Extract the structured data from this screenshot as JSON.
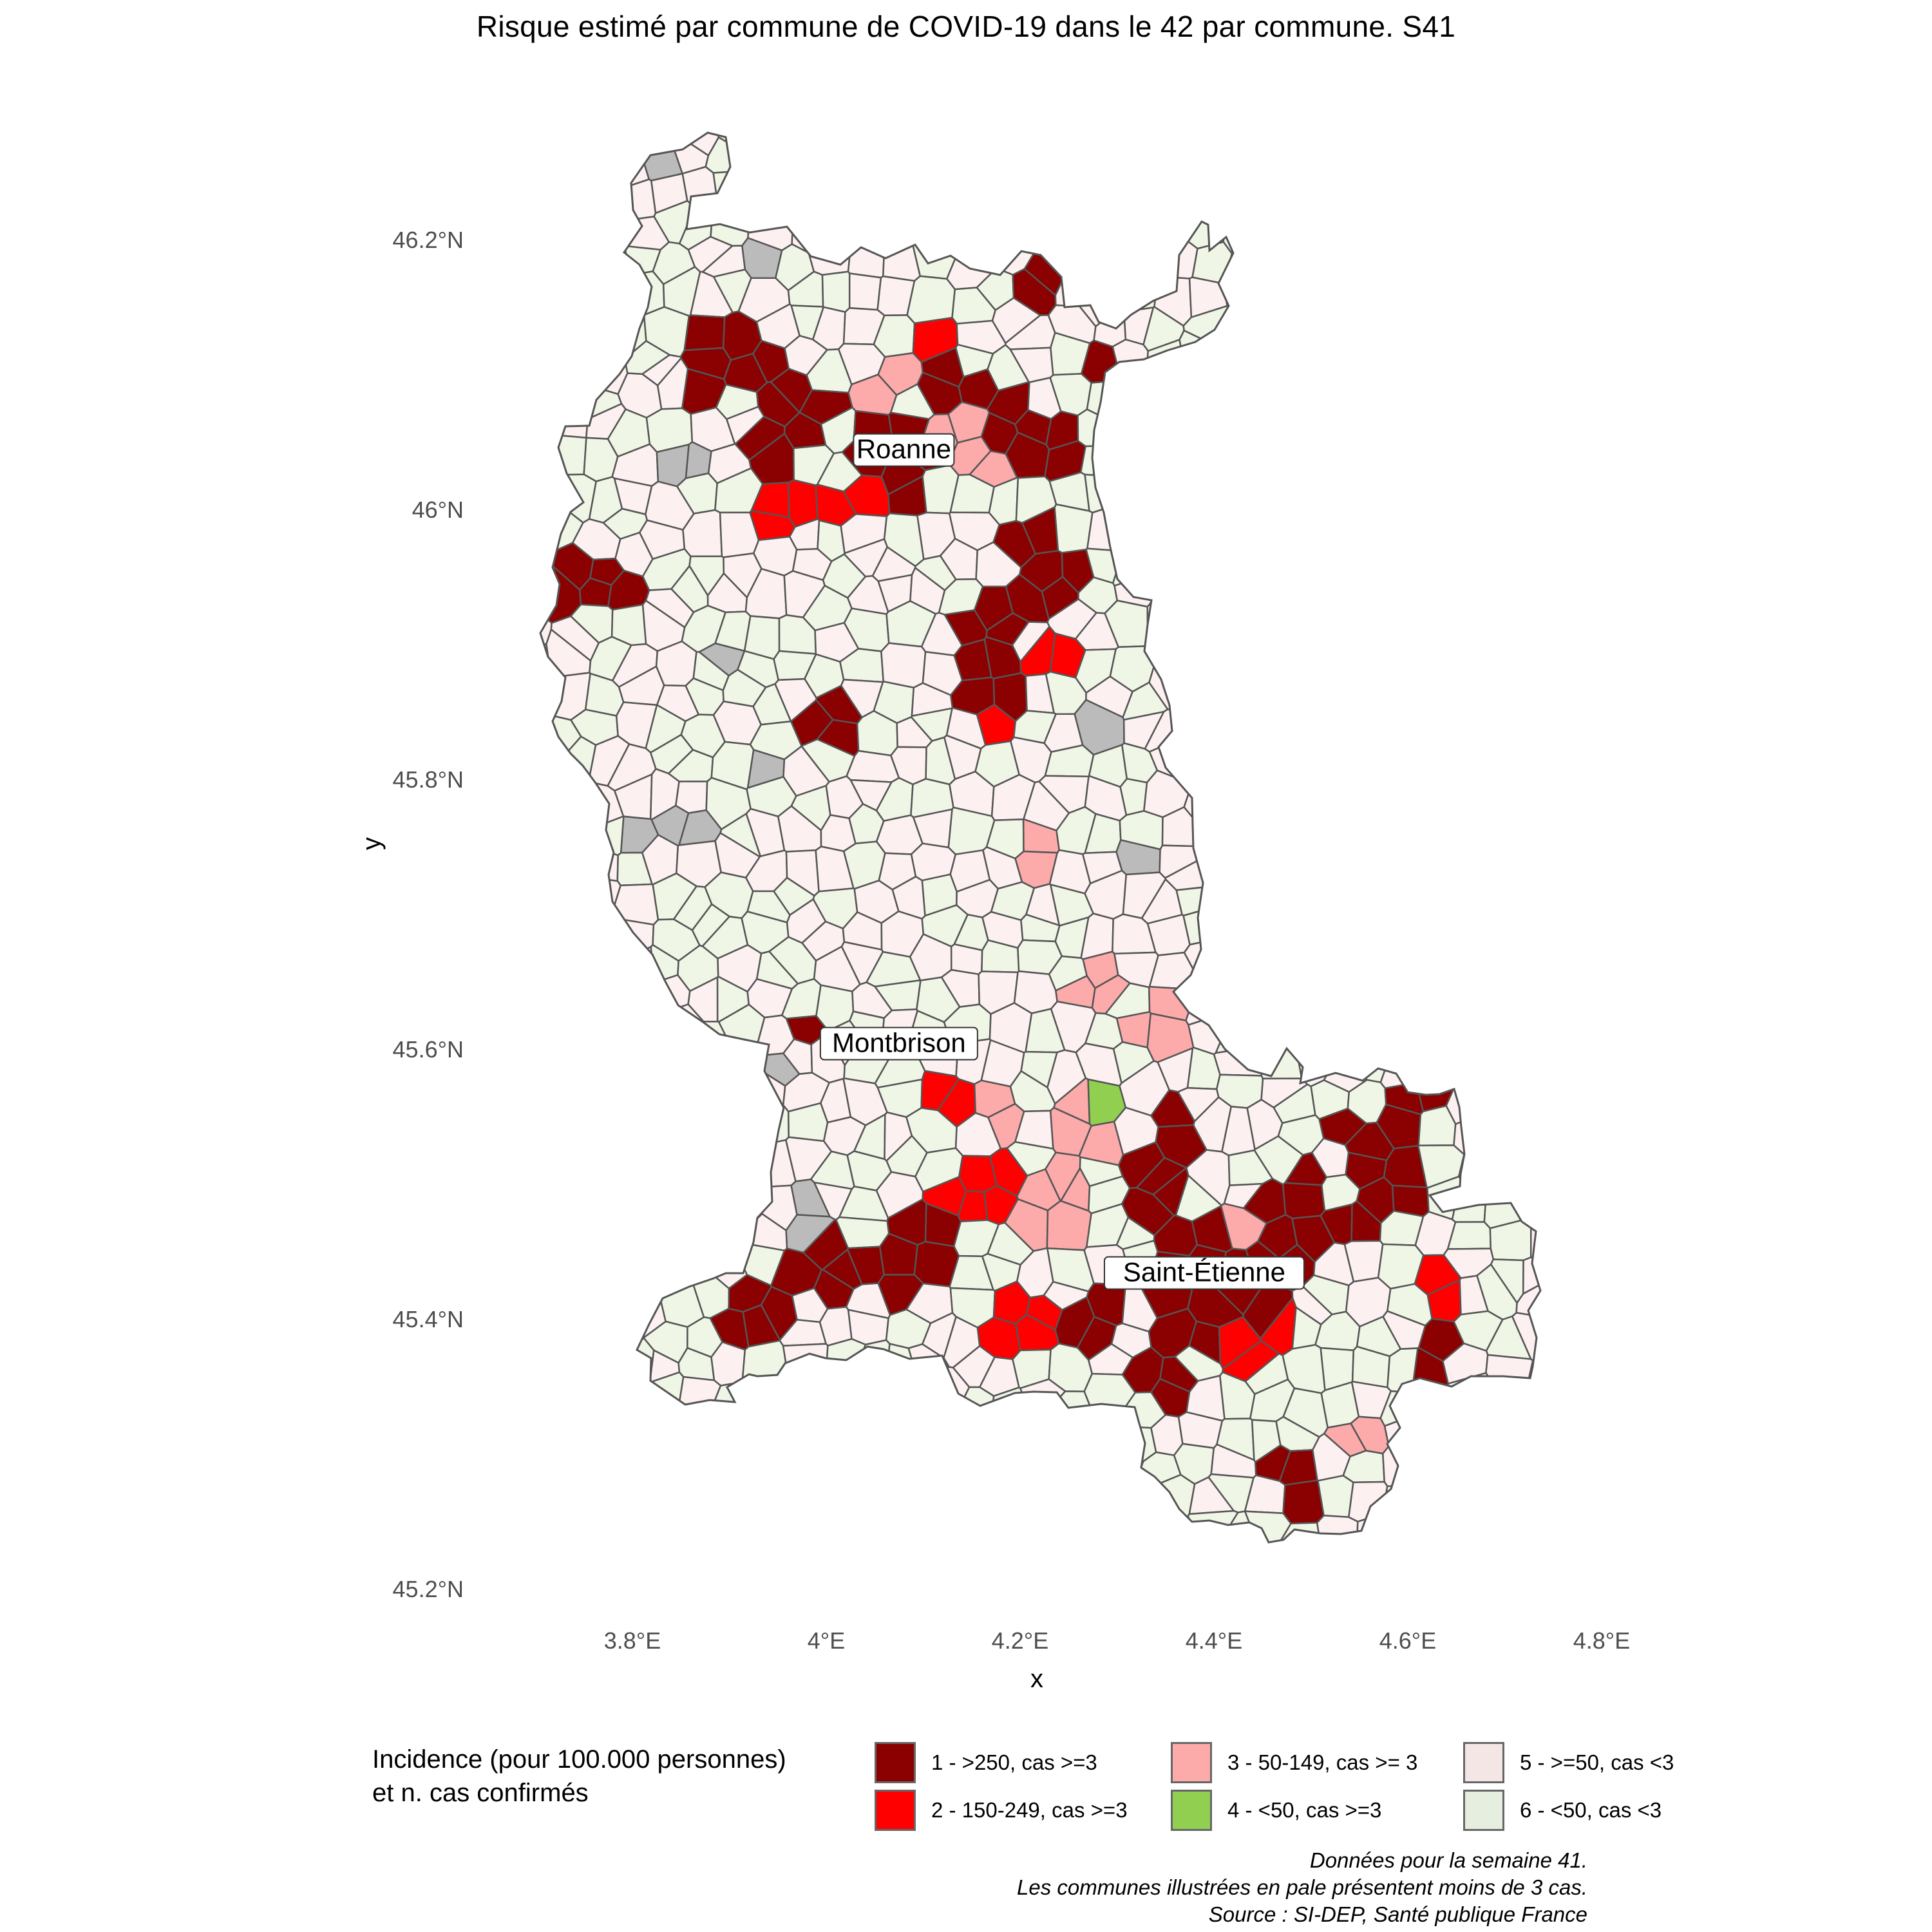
{
  "title": "Risque estimé par commune de COVID-19 dans le 42 par commune. S41",
  "axes": {
    "x_title": "x",
    "y_title": "y",
    "x_ticks": [
      "3.8°E",
      "4°E",
      "4.2°E",
      "4.4°E",
      "4.6°E",
      "4.8°E"
    ],
    "y_ticks": [
      "46.2°N",
      "46°N",
      "45.8°N",
      "45.6°N",
      "45.4°N",
      "45.2°N"
    ]
  },
  "cities": [
    {
      "name": "Roanne",
      "lon": 4.08,
      "lat": 46.045
    },
    {
      "name": "Montbrison",
      "lon": 4.075,
      "lat": 45.605
    },
    {
      "name": "Saint-Étienne",
      "lon": 4.39,
      "lat": 45.435
    }
  ],
  "legend": {
    "title_line1": "Incidence (pour 100.000 personnes)",
    "title_line2": "et n. cas confirmés",
    "items": [
      {
        "label": "1 - >250, cas >=3",
        "color": "#8b0000"
      },
      {
        "label": "2 - 150-249, cas >=3",
        "color": "#ff0000"
      },
      {
        "label": "3 - 50-149, cas >= 3",
        "color": "#fcaaaa"
      },
      {
        "label": "4 - <50, cas >=3",
        "color": "#90cf50"
      },
      {
        "label": "5 - >=50, cas <3",
        "color": "#f5e6e6"
      },
      {
        "label": "6 - <50, cas <3",
        "color": "#e6efdf"
      }
    ]
  },
  "map_colors": {
    "cat1_dark_red": "#8b0000",
    "cat2_red": "#ff0000",
    "cat3_pink": "#fcaaaa",
    "cat4_green": "#90cf50",
    "cat5_pale_pink": "#fdf0f0",
    "cat6_pale_green": "#eff6e6",
    "no_data_grey": "#bbbbbb",
    "border": "#555555"
  },
  "caption": {
    "line1": "Données pour la semaine 41.",
    "line2": "Les communes illustrées en pale présentent moins de 3 cas.",
    "line3": "Source : SI-DEP, Santé publique France"
  }
}
